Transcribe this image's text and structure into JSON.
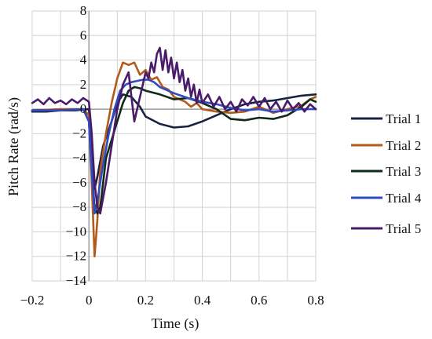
{
  "chart_data": {
    "type": "line",
    "xlabel": "Time (s)",
    "ylabel": "Pitch Rate (rad/s)",
    "xlim": [
      -0.2,
      0.8
    ],
    "ylim": [
      -14,
      8
    ],
    "xticks": [
      -0.2,
      0,
      0.2,
      0.4,
      0.6,
      0.8
    ],
    "xtick_labels": [
      "−0.2",
      "0",
      "0.2",
      "0.4",
      "0.6",
      "0.8"
    ],
    "yticks": [
      -14,
      -12,
      -10,
      -8,
      -6,
      -4,
      -2,
      0,
      2,
      4,
      6,
      8
    ],
    "ytick_labels": [
      "−14",
      "−12",
      "−10",
      "−8",
      "−6",
      "−4",
      "−2",
      "0",
      "2",
      "4",
      "6",
      "8"
    ],
    "xgrid_step": 0.1,
    "ygrid_step": 2,
    "grid": true,
    "legend_position": "right",
    "series": [
      {
        "name": "Trial 1",
        "color": "#1a2240",
        "x": [
          -0.2,
          -0.15,
          -0.1,
          -0.05,
          0,
          0.01,
          0.02,
          0.03,
          0.05,
          0.08,
          0.1,
          0.12,
          0.15,
          0.18,
          0.2,
          0.25,
          0.3,
          0.35,
          0.4,
          0.45,
          0.5,
          0.55,
          0.6,
          0.65,
          0.7,
          0.75,
          0.8
        ],
        "y": [
          -0.2,
          -0.2,
          -0.1,
          -0.1,
          0,
          -3,
          -6.5,
          -5.5,
          -3,
          -1,
          0.5,
          1.2,
          1.0,
          0.2,
          -0.6,
          -1.2,
          -1.5,
          -1.4,
          -1.0,
          -0.5,
          0.0,
          0.4,
          0.6,
          0.7,
          0.9,
          1.1,
          1.2
        ]
      },
      {
        "name": "Trial 2",
        "color": "#b35a1a",
        "x": [
          -0.2,
          -0.1,
          -0.02,
          0,
          0.01,
          0.02,
          0.03,
          0.04,
          0.06,
          0.08,
          0.1,
          0.12,
          0.14,
          0.16,
          0.18,
          0.2,
          0.22,
          0.24,
          0.26,
          0.28,
          0.3,
          0.32,
          0.34,
          0.36,
          0.38,
          0.4,
          0.45,
          0.5,
          0.55,
          0.6,
          0.65,
          0.7,
          0.75,
          0.78,
          0.8
        ],
        "y": [
          -0.1,
          0,
          0,
          -0.5,
          -6,
          -12,
          -9,
          -5,
          -2,
          0.5,
          2.5,
          3.8,
          3.6,
          3.8,
          2.8,
          3.2,
          2.4,
          2.6,
          1.8,
          1.6,
          1.0,
          0.8,
          0.6,
          0.2,
          0.5,
          0.0,
          -0.2,
          -0.3,
          -0.2,
          0.2,
          -0.3,
          0.0,
          0.3,
          0.8,
          1.0
        ]
      },
      {
        "name": "Trial 3",
        "color": "#0f2a17",
        "x": [
          -0.2,
          -0.1,
          -0.02,
          0,
          0.01,
          0.02,
          0.03,
          0.04,
          0.05,
          0.06,
          0.08,
          0.1,
          0.12,
          0.14,
          0.16,
          0.18,
          0.2,
          0.25,
          0.3,
          0.35,
          0.4,
          0.45,
          0.5,
          0.55,
          0.6,
          0.65,
          0.7,
          0.75,
          0.78,
          0.8
        ],
        "y": [
          -0.1,
          -0.1,
          0,
          -1,
          -5,
          -8,
          -8.5,
          -8,
          -6,
          -4,
          -2.5,
          -1,
          0.5,
          1.5,
          1.8,
          1.7,
          1.5,
          1.2,
          0.8,
          0.9,
          0.5,
          0.0,
          -0.8,
          -0.9,
          -0.7,
          -0.8,
          -0.5,
          0.2,
          0.8,
          0.6
        ]
      },
      {
        "name": "Trial 4",
        "color": "#2f4bc4",
        "x": [
          -0.2,
          -0.1,
          -0.02,
          0,
          0.01,
          0.02,
          0.03,
          0.05,
          0.07,
          0.09,
          0.11,
          0.13,
          0.15,
          0.17,
          0.19,
          0.21,
          0.23,
          0.25,
          0.3,
          0.35,
          0.4,
          0.45,
          0.5,
          0.55,
          0.6,
          0.65,
          0.7,
          0.75,
          0.8
        ],
        "y": [
          -0.1,
          -0.1,
          0,
          -1,
          -5,
          -8.5,
          -7.5,
          -4.5,
          -2,
          0,
          1.5,
          2.0,
          2.2,
          2.3,
          2.4,
          2.4,
          2.2,
          1.8,
          1.3,
          0.9,
          0.6,
          0.4,
          0.1,
          -0.1,
          0.0,
          -0.2,
          -0.1,
          0.0,
          0.0
        ]
      },
      {
        "name": "Trial 5",
        "color": "#4a1a6b",
        "x": [
          -0.2,
          -0.18,
          -0.16,
          -0.14,
          -0.12,
          -0.1,
          -0.08,
          -0.06,
          -0.04,
          -0.02,
          0,
          0.01,
          0.02,
          0.03,
          0.04,
          0.06,
          0.08,
          0.1,
          0.12,
          0.14,
          0.16,
          0.18,
          0.2,
          0.21,
          0.22,
          0.23,
          0.24,
          0.25,
          0.26,
          0.27,
          0.28,
          0.29,
          0.3,
          0.31,
          0.32,
          0.33,
          0.34,
          0.35,
          0.36,
          0.37,
          0.38,
          0.39,
          0.4,
          0.42,
          0.44,
          0.46,
          0.48,
          0.5,
          0.52,
          0.54,
          0.56,
          0.58,
          0.6,
          0.62,
          0.64,
          0.66,
          0.68,
          0.7,
          0.72,
          0.74,
          0.76,
          0.78,
          0.8
        ],
        "y": [
          0.5,
          0.8,
          0.4,
          0.9,
          0.5,
          0.7,
          0.4,
          0.8,
          0.5,
          0.9,
          0.6,
          -2,
          -6,
          -8,
          -8.5,
          -6,
          -3,
          0,
          2,
          3,
          -1,
          1,
          3,
          2.5,
          3.8,
          3.0,
          4.5,
          5.0,
          3.2,
          4.8,
          3.0,
          4.2,
          2.5,
          3.8,
          2.2,
          3.2,
          1.5,
          2.5,
          1.0,
          2.0,
          0.5,
          1.6,
          0.5,
          1.2,
          0.2,
          1.0,
          0.0,
          0.6,
          -0.2,
          0.8,
          0.3,
          1.0,
          0.2,
          0.9,
          0.0,
          0.6,
          -0.2,
          0.7,
          0.0,
          0.5,
          -0.2,
          0.4,
          0.0
        ]
      }
    ]
  }
}
